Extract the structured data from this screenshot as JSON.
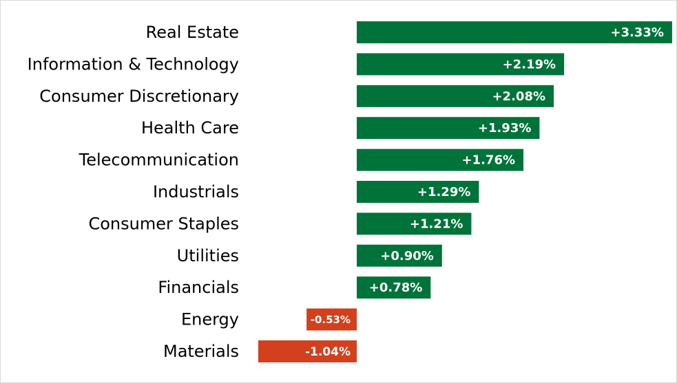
{
  "chart_data": {
    "type": "bar",
    "orientation": "horizontal",
    "categories": [
      "Real Estate",
      "Information & Technology",
      "Consumer Discretionary",
      "Health Care",
      "Telecommunication",
      "Industrials",
      "Consumer Staples",
      "Utilities",
      "Financials",
      "Energy",
      "Materials"
    ],
    "values": [
      3.33,
      2.19,
      2.08,
      1.93,
      1.76,
      1.29,
      1.21,
      0.9,
      0.78,
      -0.53,
      -1.04
    ],
    "data_labels": [
      "+3.33%",
      "+2.19%",
      "+2.08%",
      "+1.93%",
      "+1.76%",
      "+1.29%",
      "+1.21%",
      "+0.90%",
      "+0.78%",
      "-0.53%",
      "-1.04%"
    ],
    "title": "",
    "xlabel": "",
    "ylabel": "",
    "unit": "%",
    "xlim": [
      -1.04,
      3.33
    ],
    "grid": false,
    "legend": "none",
    "colors": {
      "positive": "#00733a",
      "negative": "#d2401e",
      "label_text": "#ffffff",
      "category_text": "#000000"
    }
  }
}
